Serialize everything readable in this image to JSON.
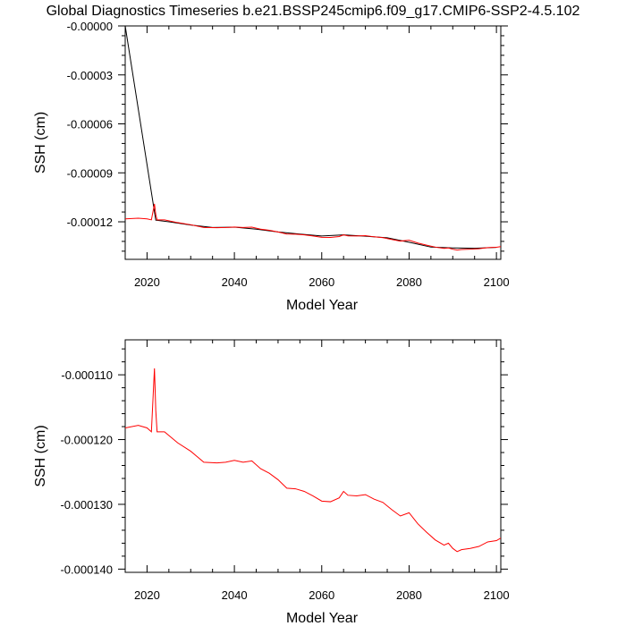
{
  "figure_title": "Global Diagnostics Timeseries b.e21.BSSP245cmip6.f09_g17.CMIP6-SSP2-4.5.102",
  "colors": {
    "series_black": "#000000",
    "series_red": "#ff0000",
    "axis": "#000000"
  },
  "chart_data": [
    {
      "type": "line",
      "title": "Global Diagnostics Timeseries b.e21.BSSP245cmip6.f09_g17.CMIP6-SSP2-4.5.102",
      "xlabel": "Model Year",
      "ylabel": "SSH (cm)",
      "xlim": [
        2015,
        2101
      ],
      "ylim": [
        -0.000143,
        0.0
      ],
      "xticks": [
        2020,
        2040,
        2060,
        2080,
        2100
      ],
      "xtick_labels": [
        "2020",
        "2040",
        "2060",
        "2080",
        "2100"
      ],
      "yticks": [
        -0.00012,
        -9e-05,
        -6e-05,
        -3e-05,
        0.0
      ],
      "ytick_labels": [
        "-0.00012",
        "-0.00009",
        "-0.00006",
        "-0.00003",
        "-0.00000"
      ],
      "series": [
        {
          "name": "black",
          "color": "#000000",
          "x": [
            2015,
            2022,
            2025,
            2030,
            2035,
            2040,
            2045,
            2050,
            2055,
            2060,
            2065,
            2070,
            2075,
            2080,
            2085,
            2090,
            2095,
            2100
          ],
          "y": [
            0.0,
            -0.000119,
            -0.00012,
            -0.000122,
            -0.0001235,
            -0.0001233,
            -0.0001245,
            -0.0001262,
            -0.0001275,
            -0.0001287,
            -0.000128,
            -0.0001288,
            -0.0001298,
            -0.0001325,
            -0.0001355,
            -0.000136,
            -0.0001362,
            -0.0001357
          ]
        },
        {
          "name": "red",
          "color": "#ff0000",
          "x": [
            2015,
            2018,
            2020,
            2021,
            2021.7,
            2022,
            2022.3,
            2024,
            2027,
            2030,
            2033,
            2036,
            2038,
            2040,
            2042,
            2044,
            2046,
            2048,
            2050,
            2052,
            2054,
            2056,
            2058,
            2060,
            2062,
            2064,
            2065,
            2066,
            2068,
            2070,
            2072,
            2074,
            2076,
            2078,
            2080,
            2082,
            2084,
            2086,
            2088,
            2089,
            2090,
            2091,
            2092,
            2094,
            2096,
            2098,
            2100,
            2101
          ],
          "y": [
            -0.0001182,
            -0.0001178,
            -0.0001182,
            -0.0001188,
            -0.000109,
            -0.0001155,
            -0.0001188,
            -0.0001188,
            -0.0001205,
            -0.0001218,
            -0.0001235,
            -0.0001236,
            -0.0001235,
            -0.0001232,
            -0.0001235,
            -0.0001233,
            -0.0001245,
            -0.0001252,
            -0.0001262,
            -0.0001275,
            -0.0001276,
            -0.000128,
            -0.0001287,
            -0.0001295,
            -0.0001296,
            -0.000129,
            -0.000128,
            -0.0001286,
            -0.0001287,
            -0.0001285,
            -0.0001292,
            -0.0001297,
            -0.0001308,
            -0.0001318,
            -0.0001313,
            -0.000133,
            -0.0001343,
            -0.0001355,
            -0.0001363,
            -0.000136,
            -0.0001368,
            -0.0001373,
            -0.000137,
            -0.0001368,
            -0.0001365,
            -0.0001358,
            -0.0001356,
            -0.0001352
          ]
        }
      ]
    },
    {
      "type": "line",
      "title": "",
      "xlabel": "Model Year",
      "ylabel": "SSH (cm)",
      "xlim": [
        2015,
        2101
      ],
      "ylim": [
        -0.0001405,
        -0.0001046
      ],
      "xticks": [
        2020,
        2040,
        2060,
        2080,
        2100
      ],
      "xtick_labels": [
        "2020",
        "2040",
        "2060",
        "2080",
        "2100"
      ],
      "yticks": [
        -0.00014,
        -0.00013,
        -0.00012,
        -0.00011
      ],
      "ytick_labels": [
        "-0.000140",
        "-0.000130",
        "-0.000120",
        "-0.000110"
      ],
      "series": [
        {
          "name": "red",
          "color": "#ff0000",
          "x": [
            2015,
            2018,
            2020,
            2021,
            2021.7,
            2022,
            2022.3,
            2024,
            2027,
            2030,
            2033,
            2036,
            2038,
            2040,
            2042,
            2044,
            2046,
            2048,
            2050,
            2052,
            2054,
            2056,
            2058,
            2060,
            2062,
            2064,
            2065,
            2066,
            2068,
            2070,
            2072,
            2074,
            2076,
            2078,
            2080,
            2082,
            2084,
            2086,
            2088,
            2089,
            2090,
            2091,
            2092,
            2094,
            2096,
            2098,
            2100,
            2101
          ],
          "y": [
            -0.0001182,
            -0.0001178,
            -0.0001182,
            -0.0001188,
            -0.000109,
            -0.0001155,
            -0.0001188,
            -0.0001188,
            -0.0001205,
            -0.0001218,
            -0.0001235,
            -0.0001236,
            -0.0001235,
            -0.0001232,
            -0.0001235,
            -0.0001233,
            -0.0001245,
            -0.0001252,
            -0.0001262,
            -0.0001275,
            -0.0001276,
            -0.000128,
            -0.0001287,
            -0.0001295,
            -0.0001296,
            -0.000129,
            -0.000128,
            -0.0001286,
            -0.0001287,
            -0.0001285,
            -0.0001292,
            -0.0001297,
            -0.0001308,
            -0.0001318,
            -0.0001313,
            -0.000133,
            -0.0001343,
            -0.0001355,
            -0.0001363,
            -0.000136,
            -0.0001368,
            -0.0001373,
            -0.000137,
            -0.0001368,
            -0.0001365,
            -0.0001358,
            -0.0001356,
            -0.0001352
          ]
        }
      ]
    }
  ]
}
